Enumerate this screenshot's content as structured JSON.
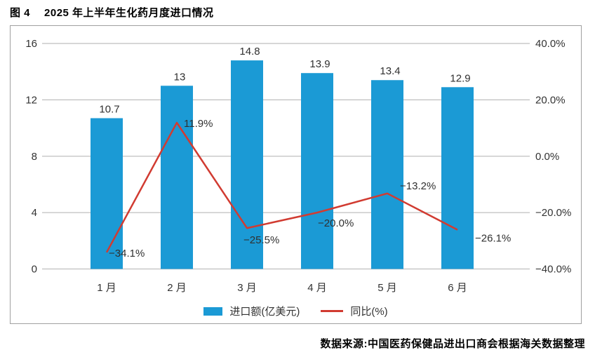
{
  "figure": {
    "tag": "图 4",
    "title": "2025 年上半年生化药月度进口情况",
    "source": "数据来源:中国医药保健品进出口商会根据海关数据整理"
  },
  "colors": {
    "bar": "#1b9ad5",
    "line": "#d13b31",
    "grid": "#bfbfbf",
    "border": "#a0a0a0",
    "text": "#333333"
  },
  "chart_data": {
    "type": "bar",
    "subtype": "bar+line combo, dual axis",
    "categories": [
      "1 月",
      "2 月",
      "3 月",
      "4 月",
      "5 月",
      "6 月"
    ],
    "series": [
      {
        "name": "进口额(亿美元)",
        "type": "bar",
        "axis": "left",
        "values": [
          10.7,
          13,
          14.8,
          13.9,
          13.4,
          12.9
        ],
        "labels": [
          "10.7",
          "13",
          "14.8",
          "13.9",
          "13.4",
          "12.9"
        ]
      },
      {
        "name": "同比(%)",
        "type": "line",
        "axis": "right",
        "values": [
          -34.1,
          11.9,
          -25.5,
          -20.0,
          -13.2,
          -26.1
        ],
        "labels": [
          "−34.1%",
          "11.9%",
          "−25.5%",
          "−20.0%",
          "−13.2%",
          "−26.1%"
        ]
      }
    ],
    "left_axis": {
      "range": [
        0,
        16
      ],
      "ticks": [
        0,
        4,
        8,
        12,
        16
      ],
      "labels": [
        "0",
        "4",
        "8",
        "12",
        "16"
      ]
    },
    "right_axis": {
      "range": [
        -40,
        40
      ],
      "ticks": [
        -40,
        -20,
        0,
        20,
        40
      ],
      "labels": [
        "−40.0%",
        "−20.0%",
        "0.0%",
        "20.0%",
        "40.0%"
      ]
    },
    "grid": true,
    "legend_position": "bottom"
  }
}
